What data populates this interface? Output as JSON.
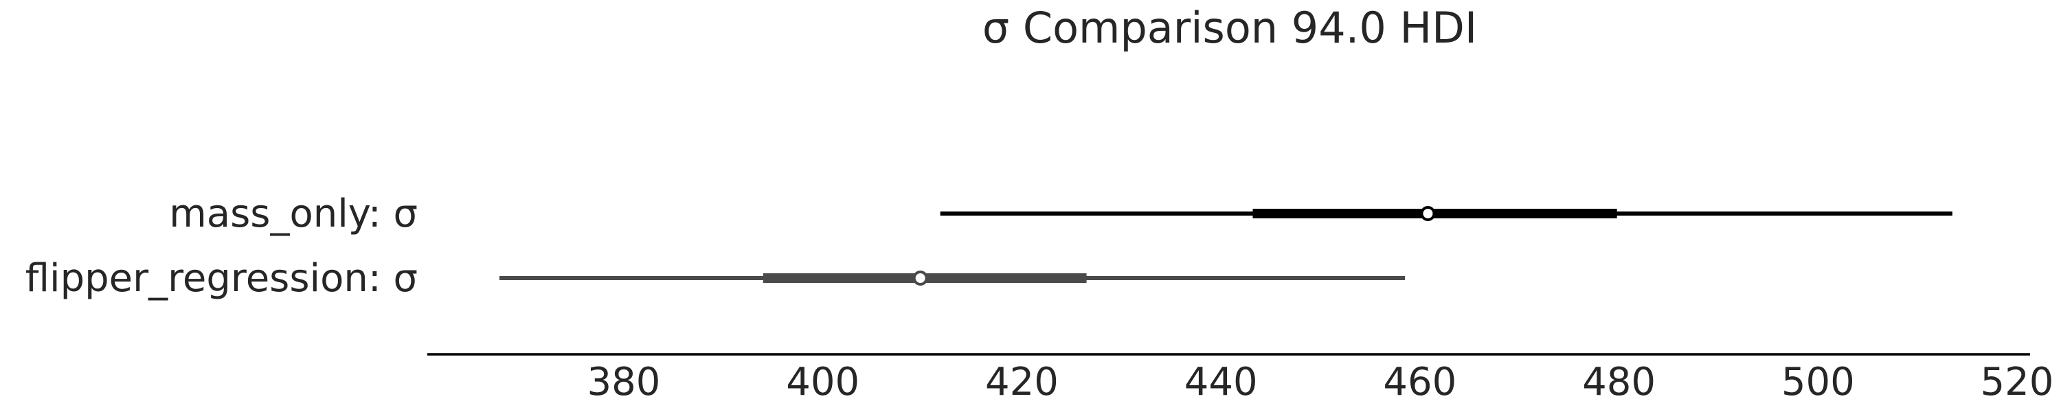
{
  "chart_data": {
    "type": "forest",
    "title": "σ Comparison 94.0 HDI",
    "xlabel": "",
    "ylabel": "",
    "xlim": [
      360,
      520
    ],
    "grid": false,
    "xticks": [
      380,
      400,
      420,
      440,
      460,
      480,
      500,
      520
    ],
    "series": [
      {
        "name": "mass_only: σ",
        "color": "#000000",
        "hdi_94": [
          411.8,
          513.5
        ],
        "iqr": [
          443.2,
          479.8
        ],
        "point_estimate": 460.8
      },
      {
        "name": "flipper_regression: σ",
        "color": "#4a4a4a",
        "hdi_94": [
          367.5,
          458.5
        ],
        "iqr": [
          394.0,
          426.5
        ],
        "point_estimate": 409.8
      }
    ]
  }
}
